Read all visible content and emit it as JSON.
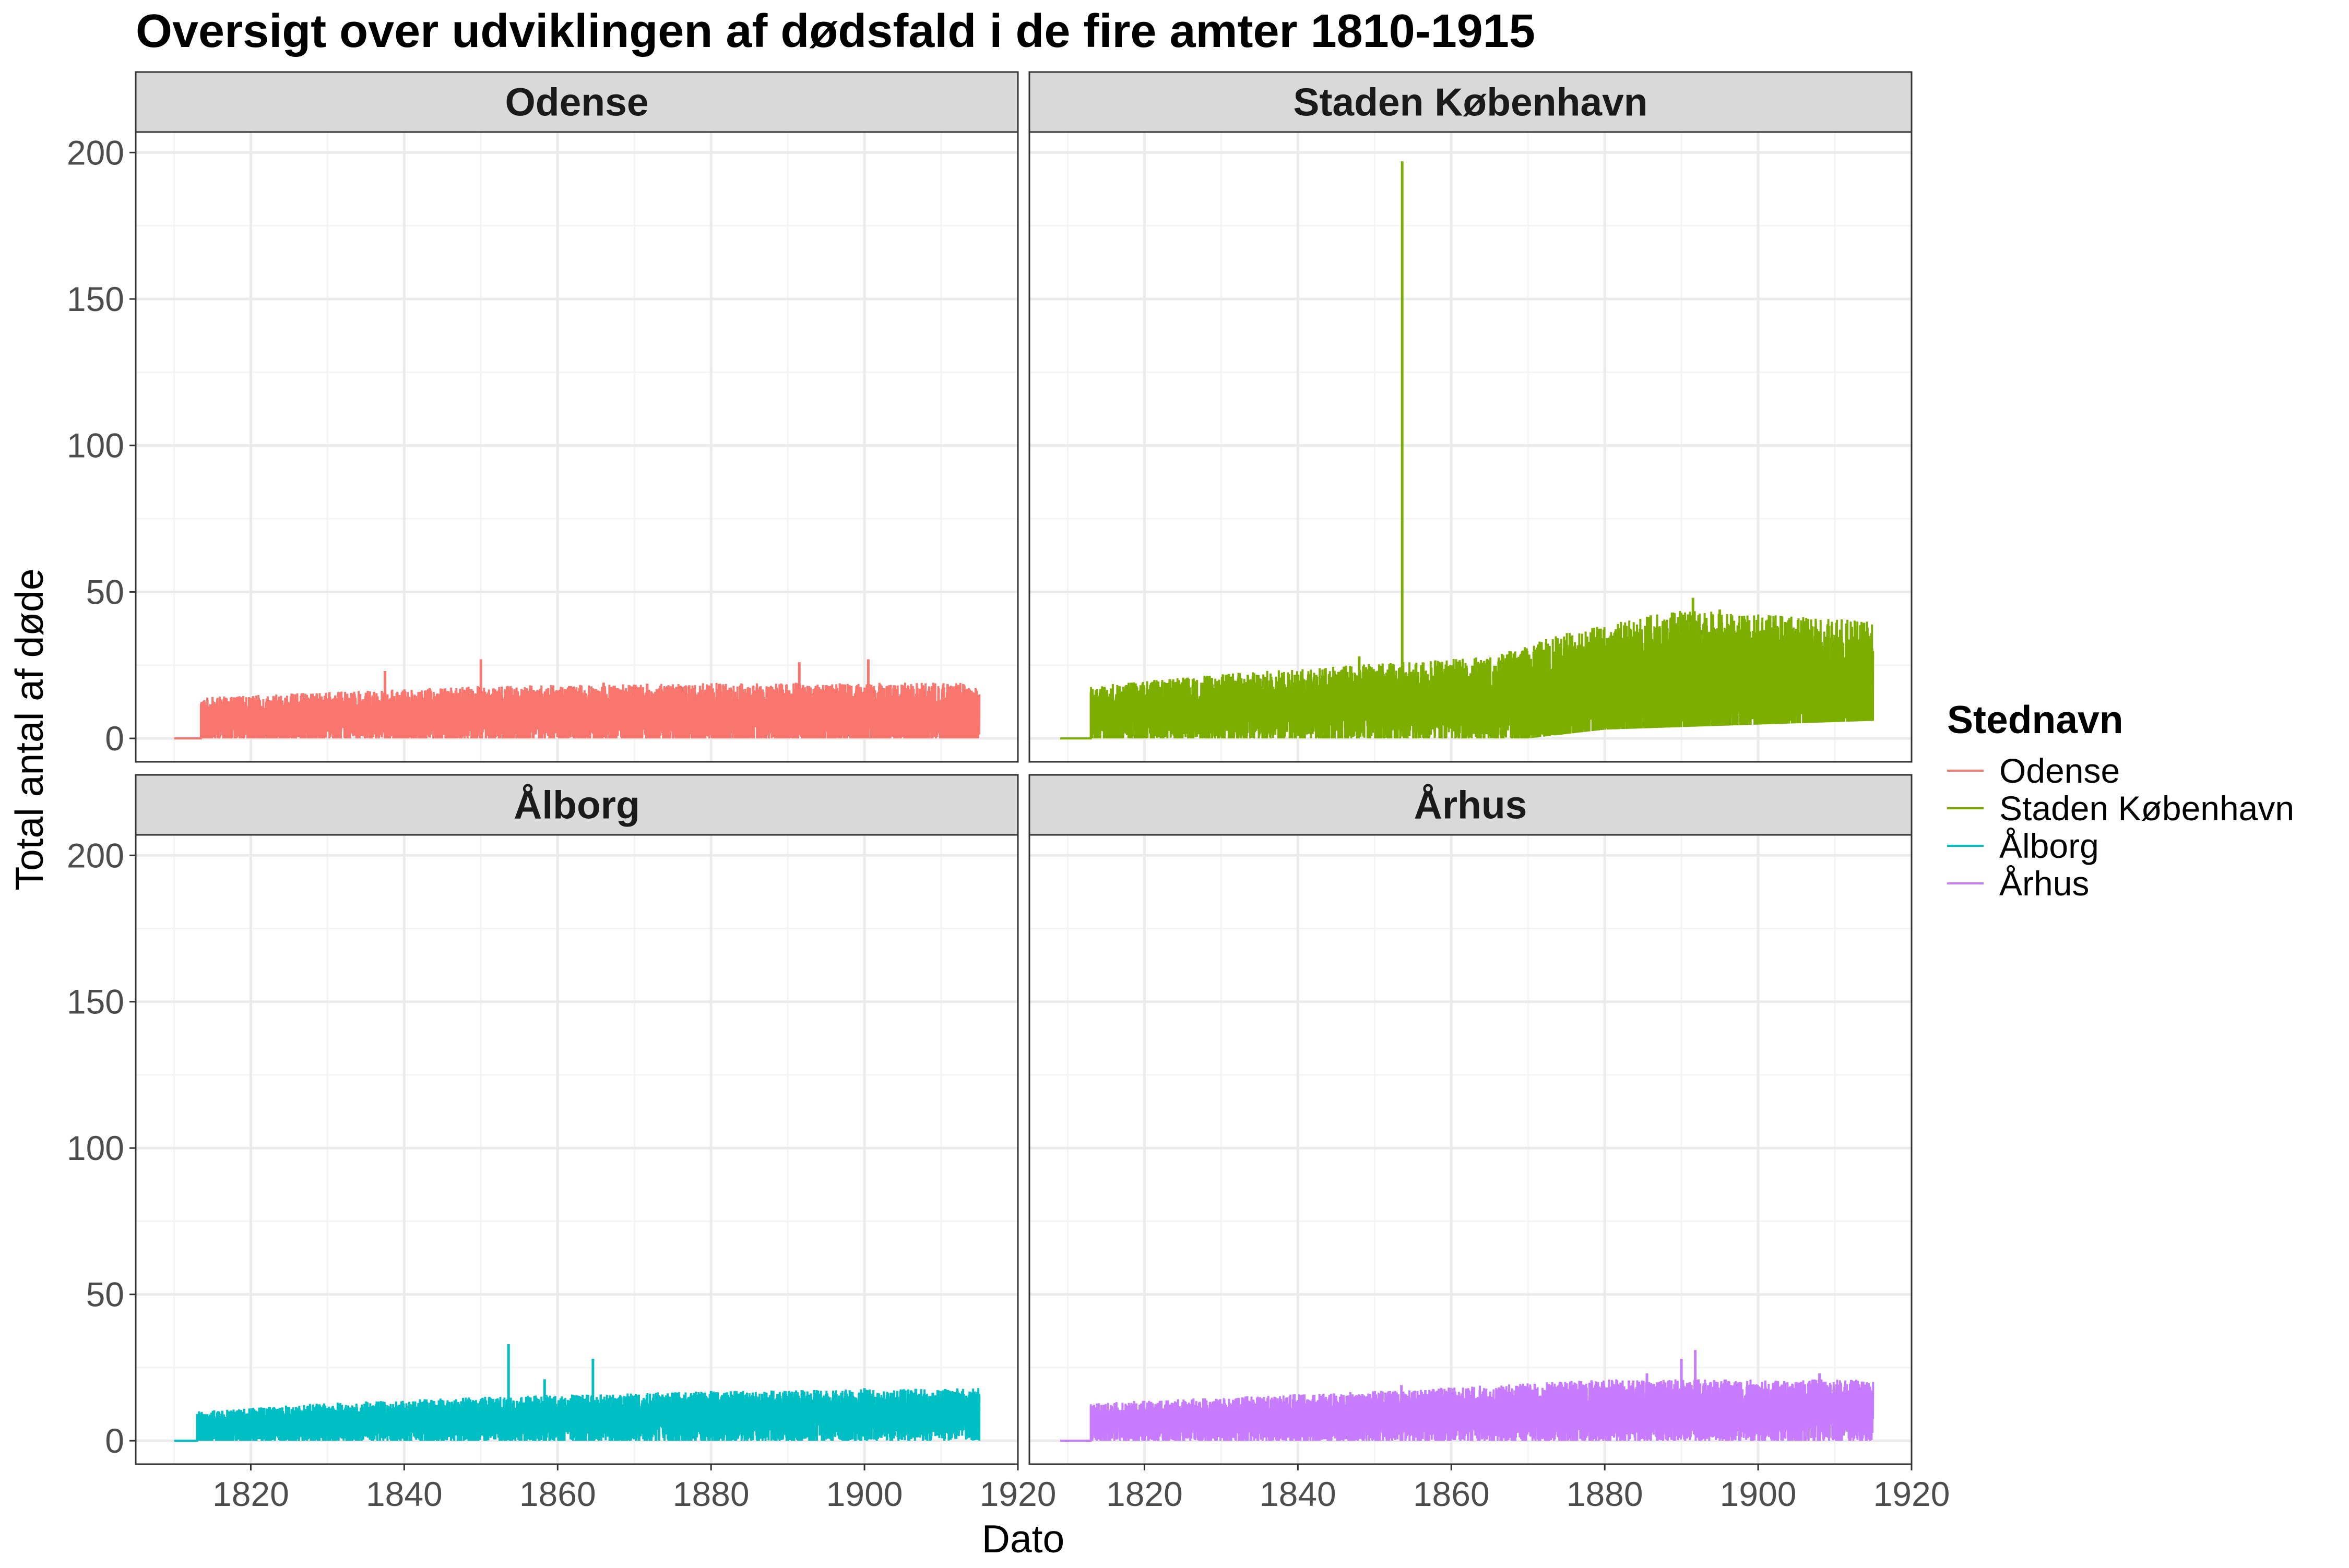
{
  "chart_data": {
    "type": "line",
    "title": "Oversigt over udviklingen af dødsfald i de fire amter 1810-1915",
    "xlabel": "Dato",
    "ylabel": "Total antal af døde",
    "xlim": [
      1805,
      1920
    ],
    "ylim": [
      -8,
      207
    ],
    "xticks": [
      1820,
      1840,
      1860,
      1880,
      1900,
      1920
    ],
    "yticks": [
      0,
      50,
      100,
      150,
      200
    ],
    "grid": true,
    "legend": {
      "title": "Stednavn",
      "placement": "right"
    },
    "series": [
      {
        "name": "Odense",
        "panel": "Odense",
        "color": "#F8766D",
        "start": 1810,
        "ramp": 1813.5,
        "end": 1915,
        "base": [
          [
            1813.5,
            6
          ],
          [
            1850,
            8
          ],
          [
            1880,
            8
          ],
          [
            1915,
            8
          ]
        ],
        "amp": [
          [
            1813.5,
            8
          ],
          [
            1850,
            10
          ],
          [
            1880,
            11
          ],
          [
            1915,
            11
          ]
        ],
        "min": [
          [
            1813.5,
            0
          ],
          [
            1915,
            0
          ]
        ],
        "peaks": [
          [
            1837.5,
            23
          ],
          [
            1850,
            27
          ],
          [
            1891.5,
            26
          ],
          [
            1900.5,
            27
          ],
          [
            1866,
            19
          ],
          [
            1876,
            18
          ]
        ]
      },
      {
        "name": "Staden København",
        "panel": "Staden København",
        "color": "#7CAE00",
        "start": 1809,
        "ramp": 1813,
        "end": 1915,
        "base": [
          [
            1813,
            8
          ],
          [
            1830,
            10
          ],
          [
            1853,
            12
          ],
          [
            1865,
            13
          ],
          [
            1875,
            16
          ],
          [
            1890,
            20
          ],
          [
            1915,
            18
          ]
        ],
        "amp": [
          [
            1813,
            10
          ],
          [
            1830,
            12
          ],
          [
            1853,
            14
          ],
          [
            1865,
            15
          ],
          [
            1875,
            20
          ],
          [
            1890,
            24
          ],
          [
            1915,
            22
          ]
        ],
        "min": [
          [
            1813,
            0
          ],
          [
            1870,
            0
          ],
          [
            1880,
            3
          ],
          [
            1915,
            6
          ]
        ],
        "peaks": [
          [
            1853.6,
            197
          ],
          [
            1891.5,
            48
          ],
          [
            1886,
            42
          ],
          [
            1906,
            40
          ],
          [
            1895,
            44
          ],
          [
            1848,
            28
          ],
          [
            1831,
            22
          ]
        ]
      },
      {
        "name": "Ålborg",
        "panel": "Ålborg",
        "color": "#00BFC4",
        "start": 1810,
        "ramp": 1813,
        "end": 1915,
        "base": [
          [
            1813,
            4
          ],
          [
            1830,
            6
          ],
          [
            1850,
            7
          ],
          [
            1880,
            8
          ],
          [
            1915,
            9
          ]
        ],
        "amp": [
          [
            1813,
            6
          ],
          [
            1830,
            7
          ],
          [
            1850,
            8
          ],
          [
            1880,
            9
          ],
          [
            1915,
            9
          ]
        ],
        "min": [
          [
            1813,
            0
          ],
          [
            1915,
            0
          ]
        ],
        "peaks": [
          [
            1853.6,
            33
          ],
          [
            1864.6,
            28
          ],
          [
            1858.3,
            21
          ],
          [
            1900,
            18
          ],
          [
            1880,
            17
          ]
        ]
      },
      {
        "name": "Århus",
        "panel": "Århus",
        "color": "#C77CFF",
        "start": 1809,
        "ramp": 1813,
        "end": 1915,
        "base": [
          [
            1813,
            6
          ],
          [
            1850,
            8
          ],
          [
            1880,
            10
          ],
          [
            1915,
            10
          ]
        ],
        "amp": [
          [
            1813,
            7
          ],
          [
            1850,
            9
          ],
          [
            1880,
            11
          ],
          [
            1915,
            11
          ]
        ],
        "min": [
          [
            1813,
            0
          ],
          [
            1915,
            0
          ]
        ],
        "peaks": [
          [
            1891.8,
            31
          ],
          [
            1890,
            28
          ],
          [
            1885.5,
            23
          ],
          [
            1908,
            23
          ],
          [
            1853.5,
            19
          ]
        ]
      }
    ]
  },
  "colors": {
    "panel_border": "#333333",
    "grid_major": "#ebebeb",
    "grid_minor": "#f4f4f4",
    "strip_fill": "#d9d9d9",
    "tick_text": "#4d4d4d"
  }
}
